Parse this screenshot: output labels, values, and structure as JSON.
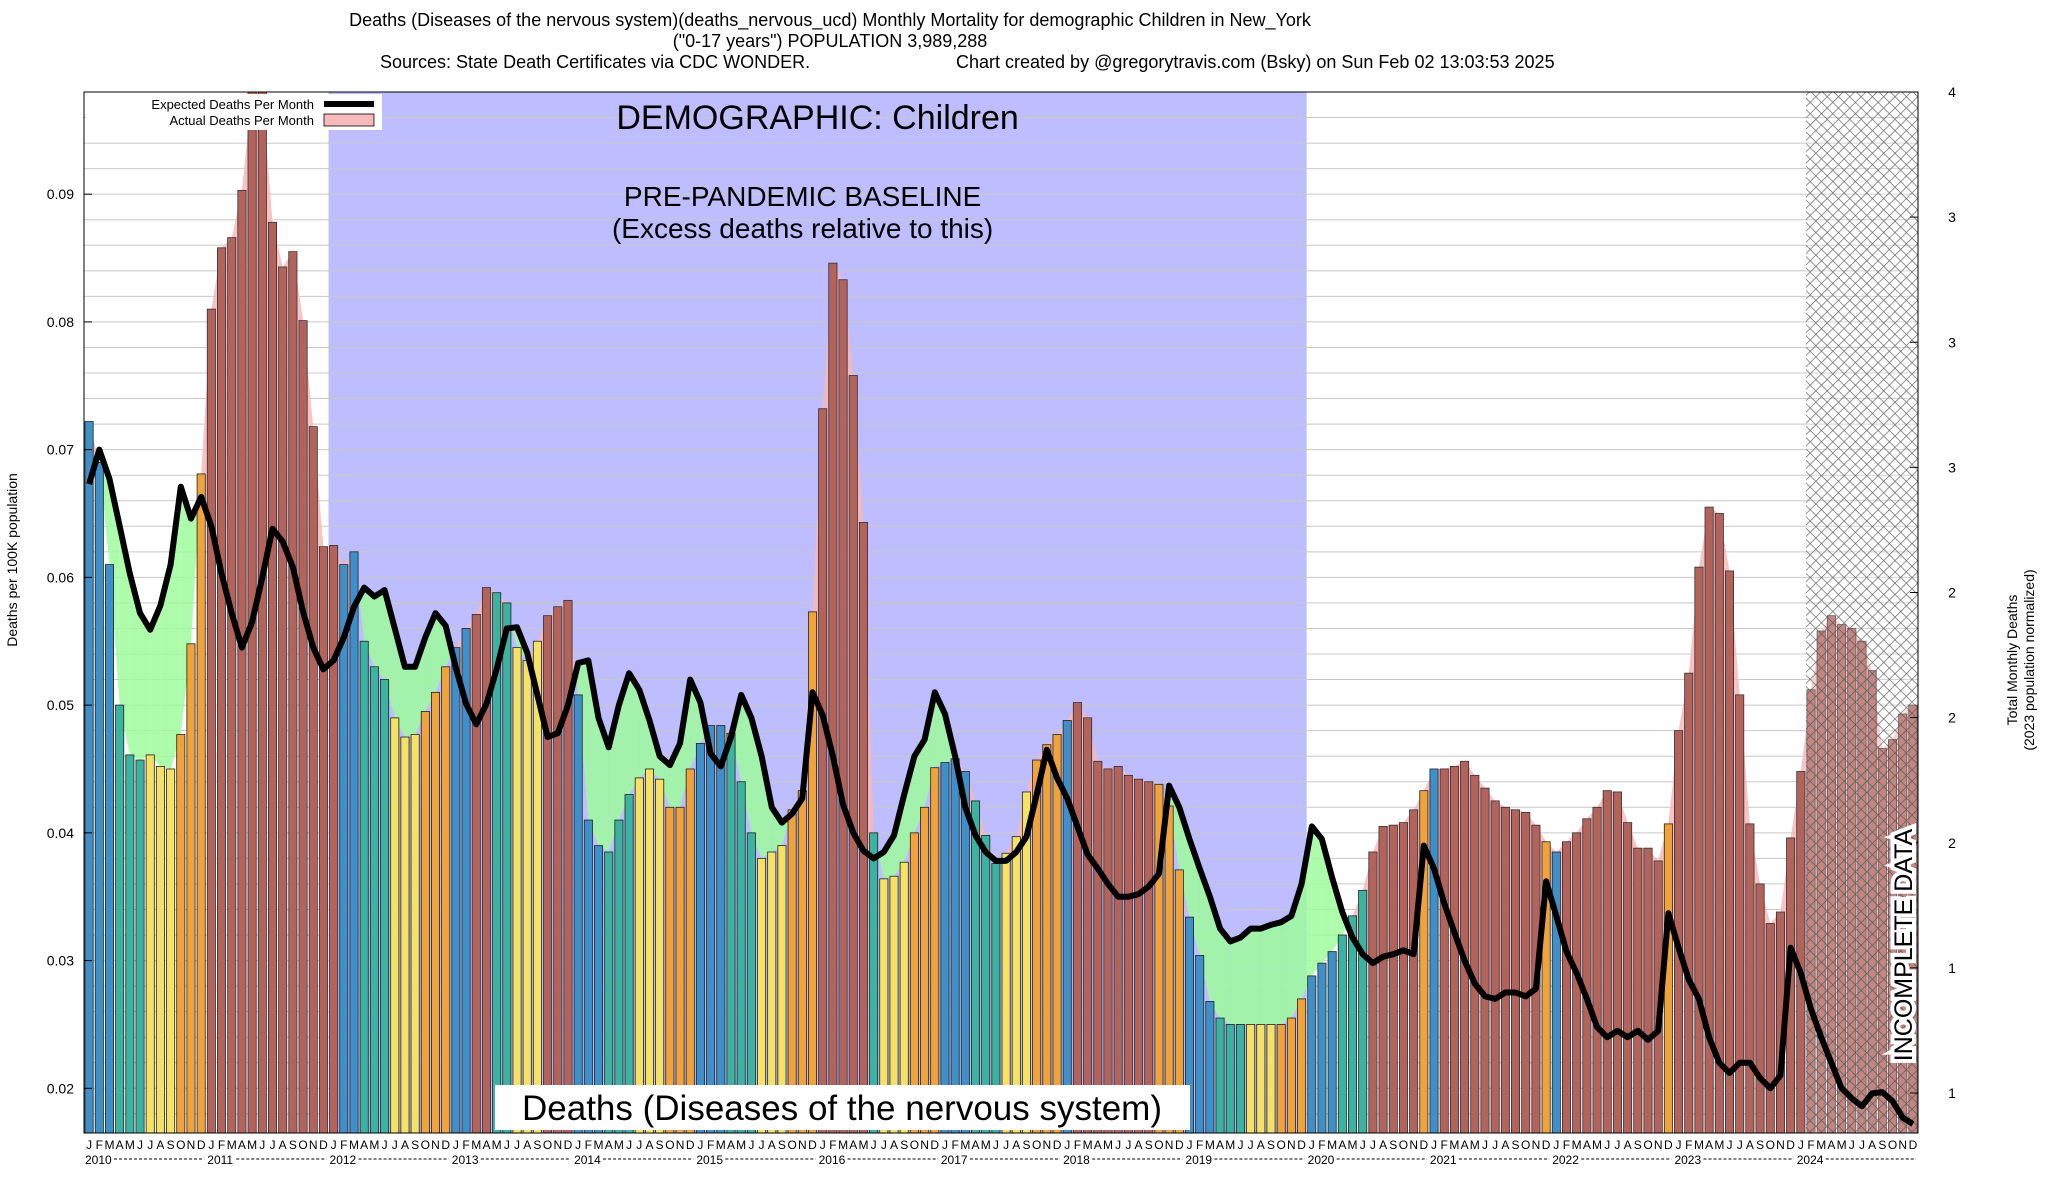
{
  "header": {
    "line1": "Deaths (Diseases of the nervous system)(deaths_nervous_ucd) Monthly Mortality for demographic Children in New_York",
    "line2": "(\"0-17 years\") POPULATION 3,989,288",
    "line3_left": "Sources: State Death Certificates via CDC WONDER.",
    "line3_right": "Chart created by @gregorytravis.com (Bsky) on Sun Feb 02 13:03:53 2025"
  },
  "annotations": {
    "demographic": "DEMOGRAPHIC: Children",
    "baseline_line1": "PRE-PANDEMIC BASELINE",
    "baseline_line2": "(Excess deaths relative to this)",
    "cause_label": "Deaths (Diseases of the nervous system)",
    "incomplete": "INCOMPLETE DATA"
  },
  "colors": {
    "baseline_band": "#bdbdff",
    "excess_fill": "#f7b9b9",
    "deficit_fill": "#9dfb9d",
    "expected_line": "#000000",
    "winter": "#3f8fc8",
    "spring": "#3bb3a0",
    "summer": "#f5e163",
    "autumn": "#f0a33a",
    "peak": "#ee7a33"
  },
  "chart_data": {
    "type": "bar",
    "title": "Deaths (Diseases of the nervous system)(deaths_nervous_ucd) Monthly Mortality for demographic Children in New_York",
    "ylabel": "Deaths per 100K population",
    "y2label": [
      "Total Monthly Deaths",
      "(2023 population normalized)"
    ],
    "ylim": [
      0.0165,
      0.098
    ],
    "yticks": [
      0.02,
      0.03,
      0.04,
      0.05,
      0.06,
      0.07,
      0.08,
      0.09
    ],
    "y2ticks": [
      "1",
      "1",
      "2",
      "2",
      "2",
      "3",
      "3",
      "3",
      "4"
    ],
    "grid": true,
    "legend_position": "top-left",
    "legend": [
      "Expected Deaths Per Month",
      "Actual Deaths Per Month"
    ],
    "month_letters": [
      "J",
      "F",
      "M",
      "A",
      "M",
      "J",
      "J",
      "A",
      "S",
      "O",
      "N",
      "D"
    ],
    "years": [
      "2010",
      "2011",
      "2012",
      "2013",
      "2014",
      "2015",
      "2016",
      "2017",
      "2018",
      "2019",
      "2020",
      "2021",
      "2022",
      "2023",
      "2024"
    ],
    "baseline_period": [
      "2012-01",
      "2019-12"
    ],
    "incomplete_period": [
      "2024-02",
      "2024-12"
    ],
    "series": [
      {
        "name": "Actual Deaths Per Month",
        "values": [
          0.0722,
          0.069,
          0.061,
          0.05,
          0.0461,
          0.0457,
          0.0461,
          0.0452,
          0.045,
          0.0477,
          0.0548,
          0.0681,
          0.081,
          0.0858,
          0.0866,
          0.0903,
          0.098,
          0.098,
          0.0878,
          0.0843,
          0.0855,
          0.0801,
          0.0718,
          0.0624,
          0.0625,
          0.061,
          0.062,
          0.055,
          0.053,
          0.052,
          0.049,
          0.0475,
          0.0477,
          0.0495,
          0.051,
          0.053,
          0.0545,
          0.056,
          0.0571,
          0.0592,
          0.0588,
          0.058,
          0.0545,
          0.0535,
          0.055,
          0.057,
          0.0577,
          0.0582,
          0.0508,
          0.041,
          0.039,
          0.0385,
          0.041,
          0.043,
          0.0443,
          0.045,
          0.0442,
          0.042,
          0.042,
          0.045,
          0.047,
          0.0484,
          0.0484,
          0.0478,
          0.044,
          0.04,
          0.038,
          0.0385,
          0.039,
          0.0418,
          0.0433,
          0.0573,
          0.0732,
          0.0846,
          0.0833,
          0.0758,
          0.0643,
          0.04,
          0.0364,
          0.0366,
          0.0377,
          0.04,
          0.042,
          0.0451,
          0.0455,
          0.0458,
          0.0448,
          0.0425,
          0.0398,
          0.0376,
          0.0384,
          0.0397,
          0.0432,
          0.0457,
          0.0469,
          0.0477,
          0.0488,
          0.0502,
          0.049,
          0.0456,
          0.045,
          0.0452,
          0.0445,
          0.0442,
          0.044,
          0.0438,
          0.0421,
          0.0371,
          0.0334,
          0.0304,
          0.0268,
          0.0255,
          0.025,
          0.025,
          0.025,
          0.025,
          0.025,
          0.025,
          0.0255,
          0.027,
          0.0288,
          0.0298,
          0.0307,
          0.032,
          0.0335,
          0.0355,
          0.0385,
          0.0405,
          0.0406,
          0.0408,
          0.0418,
          0.0433,
          0.045,
          0.045,
          0.0452,
          0.0456,
          0.0445,
          0.0435,
          0.0425,
          0.042,
          0.0418,
          0.0416,
          0.0406,
          0.0393,
          0.0385,
          0.0393,
          0.04,
          0.0411,
          0.042,
          0.0433,
          0.0432,
          0.0408,
          0.0388,
          0.0388,
          0.0378,
          0.0407,
          0.048,
          0.0525,
          0.0608,
          0.0655,
          0.065,
          0.0605,
          0.0508,
          0.0407,
          0.036,
          0.0329,
          0.0338,
          0.0396,
          0.0448,
          0.0512,
          0.0558,
          0.057,
          0.0563,
          0.056,
          0.055,
          0.0527,
          0.0466,
          0.0473,
          0.0493,
          0.05
        ]
      },
      {
        "name": "Expected Deaths Per Month",
        "values": [
          0.0673,
          0.07,
          0.0677,
          0.064,
          0.0603,
          0.0572,
          0.0559,
          0.0578,
          0.061,
          0.0671,
          0.0646,
          0.0663,
          0.064,
          0.0603,
          0.0572,
          0.0545,
          0.0565,
          0.06,
          0.0638,
          0.0628,
          0.0608,
          0.0573,
          0.0545,
          0.0528,
          0.0535,
          0.0553,
          0.0577,
          0.0592,
          0.0585,
          0.059,
          0.056,
          0.053,
          0.053,
          0.0553,
          0.0572,
          0.0562,
          0.0529,
          0.0501,
          0.0485,
          0.0501,
          0.0528,
          0.056,
          0.0561,
          0.0541,
          0.0508,
          0.0475,
          0.0478,
          0.05,
          0.0533,
          0.0535,
          0.049,
          0.0467,
          0.05,
          0.0525,
          0.0512,
          0.0488,
          0.046,
          0.0453,
          0.047,
          0.052,
          0.0502,
          0.0462,
          0.0452,
          0.0475,
          0.0508,
          0.049,
          0.046,
          0.042,
          0.0408,
          0.0415,
          0.0427,
          0.051,
          0.0492,
          0.046,
          0.0422,
          0.04,
          0.0386,
          0.038,
          0.0385,
          0.0398,
          0.043,
          0.046,
          0.0473,
          0.051,
          0.0493,
          0.046,
          0.042,
          0.0398,
          0.0385,
          0.0378,
          0.0378,
          0.0385,
          0.0397,
          0.043,
          0.0465,
          0.0443,
          0.0427,
          0.0405,
          0.0383,
          0.0372,
          0.036,
          0.035,
          0.035,
          0.0352,
          0.0358,
          0.0368,
          0.0437,
          0.042,
          0.0395,
          0.0372,
          0.035,
          0.0325,
          0.0315,
          0.0318,
          0.0325,
          0.0325,
          0.0328,
          0.033,
          0.0335,
          0.036,
          0.0405,
          0.0395,
          0.0365,
          0.0338,
          0.0318,
          0.0305,
          0.0298,
          0.0303,
          0.0305,
          0.0308,
          0.0305,
          0.039,
          0.0372,
          0.0345,
          0.0322,
          0.03,
          0.0282,
          0.0272,
          0.027,
          0.0275,
          0.0275,
          0.0272,
          0.0278,
          0.0362,
          0.0335,
          0.0307,
          0.029,
          0.027,
          0.0248,
          0.024,
          0.0245,
          0.024,
          0.0245,
          0.0238,
          0.0245,
          0.0337,
          0.031,
          0.0285,
          0.027,
          0.024,
          0.022,
          0.0212,
          0.022,
          0.022,
          0.0208,
          0.02,
          0.021,
          0.031,
          0.029,
          0.0262,
          0.024,
          0.022,
          0.02,
          0.0192,
          0.0186,
          0.0196,
          0.0197,
          0.019,
          0.0177,
          0.0172
        ]
      }
    ]
  }
}
